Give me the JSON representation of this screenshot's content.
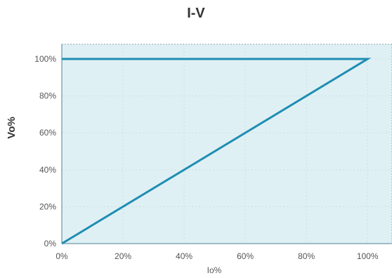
{
  "colors": {
    "plot_background": "#dff0f4",
    "line": "#1f8db3",
    "grid": "#c9dfe6",
    "border": "#8aa7b2",
    "text": "#333333",
    "tick_text": "#555555"
  },
  "chart_data": {
    "type": "line",
    "title": "I-V",
    "xlabel": "Io%",
    "ylabel": "Vo%",
    "xlim": [
      0,
      108
    ],
    "ylim": [
      0,
      108
    ],
    "x_ticks": [
      0,
      20,
      40,
      60,
      80,
      100
    ],
    "y_ticks": [
      0,
      20,
      40,
      60,
      80,
      100
    ],
    "x_tick_labels": [
      "0%",
      "20%",
      "40%",
      "60%",
      "80%",
      "100%"
    ],
    "y_tick_labels": [
      "0%",
      "20%",
      "40%",
      "60%",
      "80%",
      "100%"
    ],
    "grid": true,
    "plot_fill": true,
    "series": [
      {
        "x": [
          0,
          100,
          0
        ],
        "y": [
          0,
          100,
          100
        ]
      }
    ]
  }
}
